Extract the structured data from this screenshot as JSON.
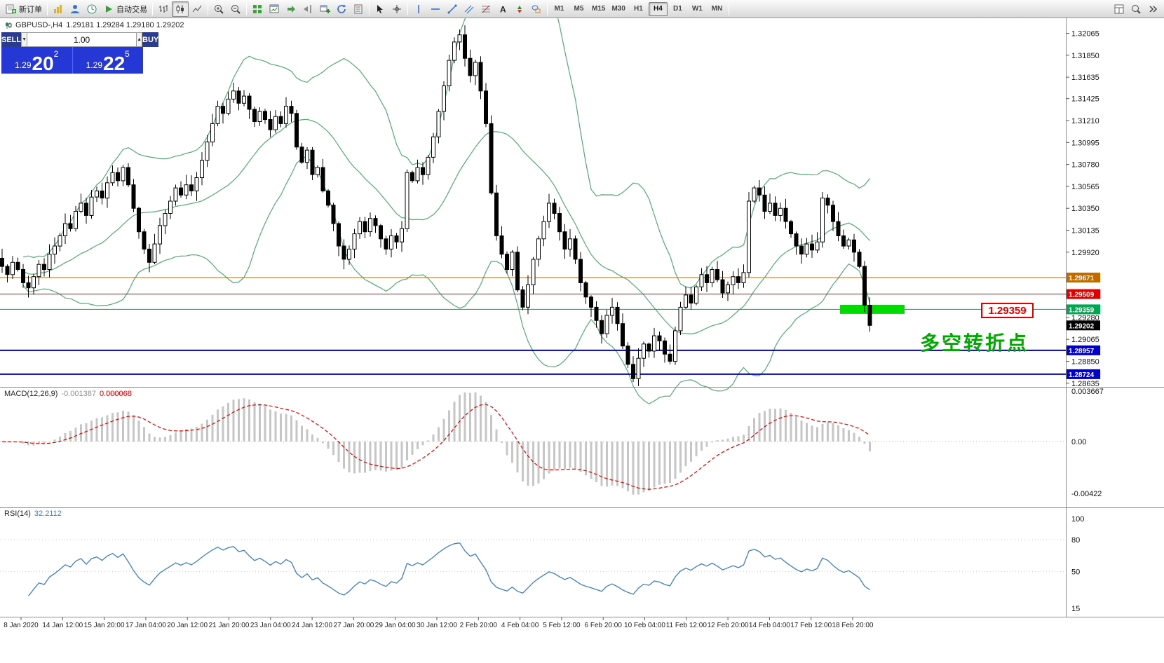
{
  "toolbar": {
    "new_order_label": "新订单",
    "auto_trading_label": "自动交易",
    "timeframes": [
      "M1",
      "M5",
      "M15",
      "M30",
      "H1",
      "H4",
      "D1",
      "W1",
      "MN"
    ],
    "active_timeframe": "H4",
    "icon_names": [
      "new-order-icon",
      "new-chart-icon",
      "profiles-icon",
      "market-watch-icon",
      "auto-trading-icon",
      "bar-chart-icon",
      "candlestick-chart-icon",
      "line-chart-icon",
      "zoom-in-icon",
      "zoom-out-icon",
      "tile-windows-icon",
      "indicator-list-icon",
      "auto-scroll-icon",
      "chart-shift-icon",
      "new-window-icon",
      "cycle-icon",
      "template-icon",
      "cursor-icon",
      "crosshair-icon",
      "vertical-line-icon",
      "horizontal-line-icon",
      "trendline-icon",
      "channel-icon",
      "fibonacci-icon",
      "text-icon",
      "arrows-icon",
      "shapes-icon",
      "search-icon",
      "overflow-icon"
    ]
  },
  "header": {
    "symbol": "GBPUSD-,H4",
    "ohlc": "1.29181 1.29284 1.29180 1.29202"
  },
  "trade_panel": {
    "sell_label": "SELL",
    "buy_label": "BUY",
    "volume": "1.00",
    "sell_price_prefix": "1.29",
    "sell_price_big": "20",
    "sell_price_sup": "2",
    "buy_price_prefix": "1.29",
    "buy_price_big": "22",
    "buy_price_sup": "5"
  },
  "levels": {
    "orange": {
      "price": "1.29671",
      "color": "#C06A00"
    },
    "red": {
      "price": "1.29509",
      "color": "#E00000"
    },
    "green": {
      "price": "1.29359",
      "color": "#00A651"
    },
    "blue_upper": {
      "price": "1.28957",
      "color": "#0000C8"
    },
    "blue_lower": {
      "price": "1.28724",
      "color": "#0000C8"
    },
    "current": {
      "price": "1.29202",
      "color": "#000000"
    }
  },
  "annotation": {
    "text": "多空转折点",
    "color": "#00A800",
    "price_label": "1.29359",
    "price_label_color": "#E00000"
  },
  "highlight_bar": {
    "color": "#00DC00"
  },
  "colors": {
    "bollinger": "#56A878",
    "candle_up": "#FFFFFF",
    "candle_down": "#000000",
    "macd_histogram": "#C6C6C6",
    "macd_signal": "#E00000",
    "rsi_line": "#3E7FC1"
  },
  "macd_panel": {
    "label": "MACD(12,26,9)",
    "value_main": "-0.001387",
    "value_signal": "0.000068",
    "axis_labels": [
      "0.003667",
      "0.00",
      "-0.00422"
    ]
  },
  "rsi_panel": {
    "label": "RSI(14)",
    "value": "32.2112",
    "axis_labels": [
      "100",
      "80",
      "50",
      "15"
    ]
  },
  "chart_data": {
    "type": "candlestick",
    "symbol": "GBPUSD-",
    "timeframe": "H4",
    "ohlc_current": {
      "open": "1.29181",
      "high": "1.29284",
      "low": "1.29180",
      "close": "1.29202"
    },
    "y_axis_labels": [
      "1.32065",
      "1.31850",
      "1.31635",
      "1.31425",
      "1.31210",
      "1.30995",
      "1.30780",
      "1.30565",
      "1.30350",
      "1.30135",
      "1.29920",
      "1.29280",
      "1.29065",
      "1.28850",
      "1.28635"
    ],
    "x_axis_labels": [
      "8 Jan 2020",
      "14 Jan 12:00",
      "15 Jan 20:00",
      "17 Jan 04:00",
      "20 Jan 12:00",
      "21 Jan 20:00",
      "23 Jan 04:00",
      "24 Jan 12:00",
      "27 Jan 20:00",
      "29 Jan 04:00",
      "30 Jan 12:00",
      "2 Feb 20:00",
      "4 Feb 04:00",
      "5 Feb 12:00",
      "6 Feb 20:00",
      "10 Feb 04:00",
      "11 Feb 12:00",
      "12 Feb 20:00",
      "14 Feb 04:00",
      "17 Feb 12:00",
      "18 Feb 20:00"
    ],
    "indicators": [
      {
        "name": "Bollinger Bands",
        "period": 20,
        "deviation": 2
      },
      {
        "name": "MACD",
        "fast": 12,
        "slow": 26,
        "signal": 9,
        "current_main": "-0.001387",
        "current_signal": "0.000068"
      },
      {
        "name": "RSI",
        "period": 14,
        "current": "32.2112"
      }
    ],
    "closes": [
      1.2978,
      1.297,
      1.2982,
      1.2975,
      1.2962,
      1.2957,
      1.2968,
      1.298,
      1.2975,
      1.299,
      1.2998,
      1.3008,
      1.302,
      1.3015,
      1.3032,
      1.304,
      1.3028,
      1.3046,
      1.3052,
      1.3045,
      1.306,
      1.307,
      1.3062,
      1.3075,
      1.3058,
      1.3035,
      1.3012,
      1.2995,
      1.2982,
      1.3,
      1.3018,
      1.303,
      1.3042,
      1.3055,
      1.3048,
      1.3058,
      1.3052,
      1.3065,
      1.3082,
      1.31,
      1.3118,
      1.3135,
      1.3128,
      1.3142,
      1.315,
      1.3138,
      1.3145,
      1.3132,
      1.312,
      1.313,
      1.3122,
      1.3112,
      1.3125,
      1.3118,
      1.3135,
      1.3128,
      1.3095,
      1.308,
      1.3092,
      1.3068,
      1.3075,
      1.3052,
      1.3038,
      1.302,
      1.2998,
      1.2985,
      1.2995,
      1.301,
      1.3022,
      1.3012,
      1.3025,
      1.3018,
      1.3005,
      1.2995,
      1.3008,
      1.3002,
      1.3015,
      1.307,
      1.3062,
      1.3075,
      1.3068,
      1.3085,
      1.3105,
      1.313,
      1.3155,
      1.318,
      1.3198,
      1.3205,
      1.3182,
      1.3165,
      1.3178,
      1.315,
      1.3118,
      1.305,
      1.3008,
      1.299,
      1.2975,
      1.2992,
      1.2955,
      1.2938,
      1.296,
      1.2985,
      1.3005,
      1.3022,
      1.304,
      1.303,
      1.3012,
      1.2995,
      1.3005,
      1.2985,
      1.2962,
      1.2948,
      1.2938,
      1.2925,
      1.2912,
      1.293,
      1.2938,
      1.2922,
      1.29,
      1.2882,
      1.2868,
      1.2888,
      1.2902,
      1.2895,
      1.291,
      1.2905,
      1.2892,
      1.2885,
      1.2915,
      1.2938,
      1.295,
      1.2942,
      1.2958,
      1.297,
      1.2962,
      1.2975,
      1.2965,
      1.2952,
      1.296,
      1.2968,
      1.2962,
      1.2972,
      1.3042,
      1.3055,
      1.3048,
      1.3032,
      1.304,
      1.3028,
      1.3035,
      1.3022,
      1.301,
      1.2998,
      1.299,
      1.3,
      1.2994,
      1.3002,
      1.3045,
      1.3038,
      1.3022,
      1.3008,
      1.2998,
      1.3004,
      1.2992,
      1.2978,
      1.294,
      1.29202
    ]
  }
}
